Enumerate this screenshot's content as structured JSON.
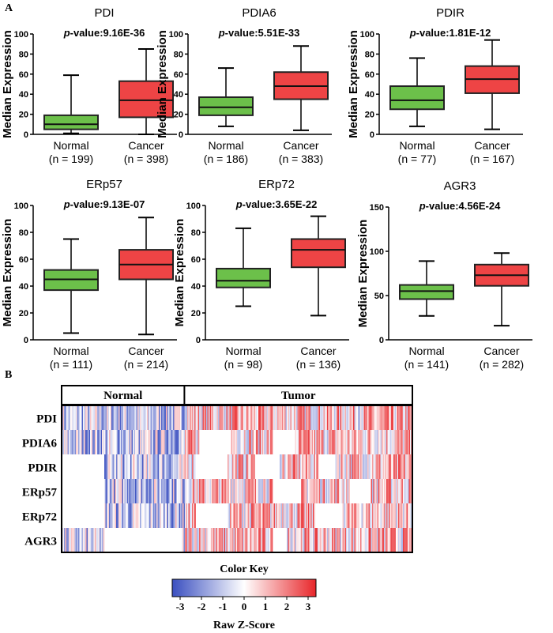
{
  "panel_a_label": "A",
  "panel_b_label": "B",
  "colors": {
    "normal": "#6cc04a",
    "cancer": "#ee4445",
    "low": "#3a4fc0",
    "mid": "#ffffff",
    "high": "#e8262a"
  },
  "chart_data": [
    {
      "type": "box",
      "title": "PDI",
      "pvalue_prefix": "p",
      "pvalue_text": "-value:9.16E-36",
      "ylabel": "Median Expression",
      "ylim": [
        0,
        100
      ],
      "yticks": [
        0,
        20,
        40,
        60,
        80,
        100
      ],
      "groups": [
        {
          "name": "Normal",
          "n": "(n = 199)",
          "min": 1,
          "q1": 5,
          "median": 10,
          "q3": 19,
          "max": 59
        },
        {
          "name": "Cancer",
          "n": "(n = 398)",
          "min": 0,
          "q1": 17,
          "median": 34,
          "q3": 53,
          "max": 85
        }
      ]
    },
    {
      "type": "box",
      "title": "PDIA6",
      "pvalue_prefix": "p",
      "pvalue_text": "-value:5.51E-33",
      "ylabel": "Median Expression",
      "ylim": [
        0,
        100
      ],
      "yticks": [
        0,
        20,
        40,
        60,
        80,
        100
      ],
      "groups": [
        {
          "name": "Normal",
          "n": "(n = 186)",
          "min": 8,
          "q1": 19,
          "median": 27,
          "q3": 37,
          "max": 66
        },
        {
          "name": "Cancer",
          "n": "(n = 383)",
          "min": 4,
          "q1": 35,
          "median": 48,
          "q3": 62,
          "max": 88
        }
      ]
    },
    {
      "type": "box",
      "title": "PDIR",
      "pvalue_prefix": "p",
      "pvalue_text": "-value:1.81E-12",
      "ylabel": "Median Expression",
      "ylim": [
        0,
        100
      ],
      "yticks": [
        0,
        20,
        40,
        60,
        80,
        100
      ],
      "groups": [
        {
          "name": "Normal",
          "n": "(n = 77)",
          "min": 8,
          "q1": 25,
          "median": 34,
          "q3": 48,
          "max": 76
        },
        {
          "name": "Cancer",
          "n": "(n = 167)",
          "min": 5,
          "q1": 41,
          "median": 55,
          "q3": 68,
          "max": 94
        }
      ]
    },
    {
      "type": "box",
      "title": "ERp57",
      "pvalue_prefix": "p",
      "pvalue_text": "-value:9.13E-07",
      "ylabel": "Median Expression",
      "ylim": [
        0,
        100
      ],
      "yticks": [
        0,
        20,
        40,
        60,
        80,
        100
      ],
      "groups": [
        {
          "name": "Normal",
          "n": "(n = 111)",
          "min": 5,
          "q1": 37,
          "median": 45,
          "q3": 52,
          "max": 75
        },
        {
          "name": "Cancer",
          "n": "(n = 214)",
          "min": 4,
          "q1": 45,
          "median": 56,
          "q3": 67,
          "max": 91
        }
      ]
    },
    {
      "type": "box",
      "title": "ERp72",
      "pvalue_prefix": "p",
      "pvalue_text": "-value:3.65E-22",
      "ylabel": "Median Expression",
      "ylim": [
        0,
        100
      ],
      "yticks": [
        0,
        20,
        40,
        60,
        80,
        100
      ],
      "groups": [
        {
          "name": "Normal",
          "n": "(n = 98)",
          "min": 25,
          "q1": 39,
          "median": 44,
          "q3": 53,
          "max": 83
        },
        {
          "name": "Cancer",
          "n": "(n = 136)",
          "min": 18,
          "q1": 54,
          "median": 67,
          "q3": 75,
          "max": 92
        }
      ]
    },
    {
      "type": "box",
      "title": "AGR3",
      "pvalue_prefix": "p",
      "pvalue_text": "-value:4.56E-24",
      "ylabel": "Median Expression",
      "ylim": [
        0,
        150
      ],
      "yticks": [
        0,
        50,
        100,
        150
      ],
      "groups": [
        {
          "name": "Normal",
          "n": "(n = 141)",
          "min": 27,
          "q1": 46,
          "median": 55,
          "q3": 62,
          "max": 89
        },
        {
          "name": "Cancer",
          "n": "(n = 282)",
          "min": 16,
          "q1": 61,
          "median": 73,
          "q3": 85,
          "max": 98
        }
      ]
    },
    {
      "type": "heatmap",
      "groups": [
        "Normal",
        "Tumor"
      ],
      "group_fraction_normal": 0.35,
      "rows": [
        "PDI",
        "PDIA6",
        "PDIR",
        "ERp57",
        "ERp72",
        "AGR3"
      ],
      "color_key": {
        "title": "Color Key",
        "label": "Raw Z-Score",
        "ticks": [
          -3,
          -2,
          -1,
          0,
          1,
          2,
          3
        ]
      }
    }
  ]
}
